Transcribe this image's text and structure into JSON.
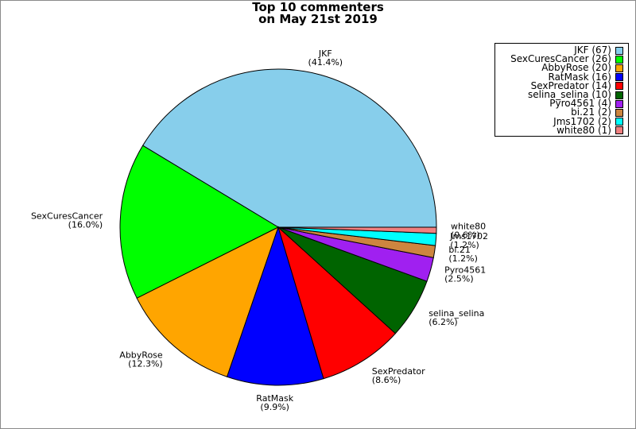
{
  "chart_data": {
    "type": "pie",
    "title_lines": [
      "Top 10 commenters",
      "on May 21st 2019"
    ],
    "slices": [
      {
        "name": "JKF",
        "count": 67,
        "percent": "41.4%",
        "color": "#87ceeb",
        "legend": "JKF (67)"
      },
      {
        "name": "SexCuresCancer",
        "count": 26,
        "percent": "16.0%",
        "color": "#00ff00",
        "legend": "SexCuresCancer (26)"
      },
      {
        "name": "AbbyRose",
        "count": 20,
        "percent": "12.3%",
        "color": "#ffa500",
        "legend": "AbbyRose (20)"
      },
      {
        "name": "RatMask",
        "count": 16,
        "percent": "9.9%",
        "color": "#0000ff",
        "legend": "RatMask (16)"
      },
      {
        "name": "SexPredator",
        "count": 14,
        "percent": "8.6%",
        "color": "#ff0000",
        "legend": "SexPredator (14)"
      },
      {
        "name": "selina_selina",
        "count": 10,
        "percent": "6.2%",
        "color": "#006400",
        "legend": "selina_selina (10)"
      },
      {
        "name": "Pyro4561",
        "count": 4,
        "percent": "2.5%",
        "color": "#a020f0",
        "legend": "Pyro4561 (4)"
      },
      {
        "name": "bi.21",
        "count": 2,
        "percent": "1.2%",
        "color": "#cd853f",
        "legend": "bi.21 (2)"
      },
      {
        "name": "Jms1702",
        "count": 2,
        "percent": "1.2%",
        "color": "#00ffff",
        "legend": "Jms1702 (2)"
      },
      {
        "name": "white80",
        "count": 1,
        "percent": "0.6%",
        "color": "#f08080",
        "legend": "white80 (1)"
      }
    ],
    "legend_position": "top-right"
  }
}
